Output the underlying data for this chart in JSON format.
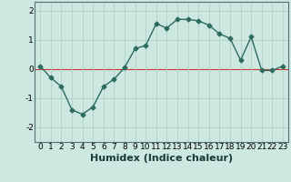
{
  "title": "",
  "xlabel": "Humidex (Indice chaleur)",
  "x": [
    0,
    1,
    2,
    3,
    4,
    5,
    6,
    7,
    8,
    9,
    10,
    11,
    12,
    13,
    14,
    15,
    16,
    17,
    18,
    19,
    20,
    21,
    22,
    23
  ],
  "y": [
    0.1,
    -0.3,
    -0.6,
    -1.4,
    -1.55,
    -1.3,
    -0.6,
    -0.35,
    0.05,
    0.7,
    0.8,
    1.55,
    1.4,
    1.7,
    1.7,
    1.65,
    1.5,
    1.2,
    1.05,
    0.3,
    1.1,
    -0.05,
    -0.05,
    0.1
  ],
  "line_color": "#2e6b5e",
  "marker": "D",
  "markersize": 2.5,
  "linewidth": 1.0,
  "bg_color": "#cce8e0",
  "grid_color": "#b0cfc8",
  "ylim": [
    -2.5,
    2.3
  ],
  "xlim": [
    -0.5,
    23.5
  ],
  "yticks": [
    -2,
    -1,
    0,
    1,
    2
  ],
  "xticks": [
    0,
    1,
    2,
    3,
    4,
    5,
    6,
    7,
    8,
    9,
    10,
    11,
    12,
    13,
    14,
    15,
    16,
    17,
    18,
    19,
    20,
    21,
    22,
    23
  ],
  "tick_fontsize": 6.5,
  "xlabel_fontsize": 8,
  "red_line_y": 0,
  "red_line_color": "#cc3333",
  "spine_color": "#557070"
}
